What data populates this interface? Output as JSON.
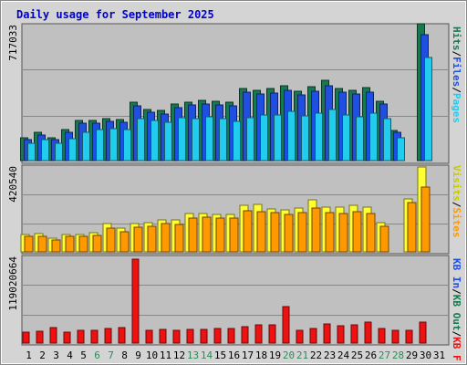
{
  "chart_data": {
    "type": "bar",
    "title": "Daily usage for September 2025",
    "categories": [
      "1",
      "2",
      "3",
      "4",
      "5",
      "6",
      "7",
      "8",
      "9",
      "10",
      "11",
      "12",
      "13",
      "14",
      "15",
      "16",
      "17",
      "18",
      "19",
      "20",
      "21",
      "22",
      "23",
      "24",
      "25",
      "26",
      "27",
      "28",
      "29",
      "30",
      "31"
    ],
    "weekend_days": [
      "6",
      "7",
      "13",
      "14",
      "20",
      "21",
      "27",
      "28"
    ],
    "panels": [
      {
        "id": "top",
        "ylabel_max": "717033",
        "ymax": 717033,
        "series": [
          {
            "name": "Hits",
            "color": "#187850",
            "values": [
              121000,
              147000,
              120000,
              162000,
              209000,
              209000,
              222000,
              214000,
              306000,
              268000,
              262000,
              294000,
              307000,
              314000,
              311000,
              308000,
              376000,
              370000,
              377000,
              393000,
              364000,
              386000,
              423000,
              377000,
              370000,
              383000,
              312000,
              158000,
              0,
              717000,
              0
            ]
          },
          {
            "name": "Files",
            "color": "#1f4fe0",
            "values": [
              112000,
              135000,
              112000,
              149000,
              194000,
              197000,
              205000,
              200000,
              288000,
              252000,
              246000,
              275000,
              290000,
              294000,
              293000,
              285000,
              358000,
              348000,
              356000,
              368000,
              343000,
              363000,
              393000,
              358000,
              348000,
              360000,
              298000,
              147000,
              0,
              658000,
              0
            ]
          },
          {
            "name": "Pages",
            "color": "#22ccee",
            "values": [
              92000,
              109000,
              90000,
              115000,
              146000,
              164000,
              167000,
              164000,
              220000,
              211000,
              202000,
              227000,
              218000,
              230000,
              219000,
              204000,
              224000,
              237000,
              239000,
              256000,
              236000,
              247000,
              266000,
              240000,
              230000,
              249000,
              220000,
              120000,
              0,
              542000,
              0
            ]
          }
        ]
      },
      {
        "id": "middle",
        "ylabel_max": "420540",
        "ymax": 420540,
        "series": [
          {
            "name": "Visits",
            "color": "#ffff33",
            "values": [
              86000,
              88000,
              69000,
              87000,
              85000,
              92000,
              137000,
              115000,
              137000,
              142000,
              155000,
              155000,
              188000,
              190000,
              184000,
              184000,
              230000,
              234000,
              212000,
              207000,
              213000,
              256000,
              220000,
              217000,
              226000,
              220000,
              143000,
              0,
              258000,
              416000,
              0
            ]
          },
          {
            "name": "Sites",
            "color": "#ff9900",
            "values": [
              76000,
              75000,
              58000,
              76000,
              76000,
              80000,
              118000,
              99000,
              120000,
              125000,
              137000,
              136000,
              166000,
              170000,
              166000,
              166000,
              200000,
              195000,
              192000,
              185000,
              192000,
              214000,
              192000,
              190000,
              199000,
              190000,
              124000,
              0,
              240000,
              318000,
              0
            ]
          }
        ]
      },
      {
        "id": "bottom",
        "ylabel_max": "119020664",
        "ymax": 119020664,
        "series": [
          {
            "name": "KB F",
            "color": "#ee1111",
            "values": [
              15500000,
              16800000,
              21900000,
              15800000,
              18700000,
              18000000,
              21000000,
              22200000,
              119020664,
              18700000,
              19300000,
              18700000,
              19800000,
              19500000,
              20800000,
              21000000,
              23800000,
              25700000,
              25700000,
              51700000,
              17500000,
              20400000,
              27100000,
              25000000,
              25300000,
              30000000,
              20200000,
              17500000,
              17500000,
              29300000,
              0
            ]
          }
        ]
      }
    ],
    "legends": [
      [
        {
          "text": "Hits",
          "color": "#187850"
        },
        {
          "text": "/",
          "color": "#000000"
        },
        {
          "text": "Files",
          "color": "#1f4fe0"
        },
        {
          "text": "/",
          "color": "#000000"
        },
        {
          "text": "Pages",
          "color": "#22ccee"
        }
      ],
      [
        {
          "text": "Visits",
          "color": "#c9c900"
        },
        {
          "text": "/",
          "color": "#000000"
        },
        {
          "text": "Sites",
          "color": "#ff9900"
        }
      ],
      [
        {
          "text": "KB In",
          "color": "#1f4fe0"
        },
        {
          "text": "/",
          "color": "#000000"
        },
        {
          "text": "KB Out",
          "color": "#187850"
        },
        {
          "text": "/",
          "color": "#000000"
        },
        {
          "text": "KB F",
          "color": "#ee1111"
        }
      ]
    ],
    "grid": true,
    "colors": {
      "plot_bg": "#c0c0c0",
      "frame_bg": "#d4d4d4",
      "title": "#0000cc",
      "weekday_label": "#000000",
      "weekend_label": "#2e8b57"
    }
  }
}
